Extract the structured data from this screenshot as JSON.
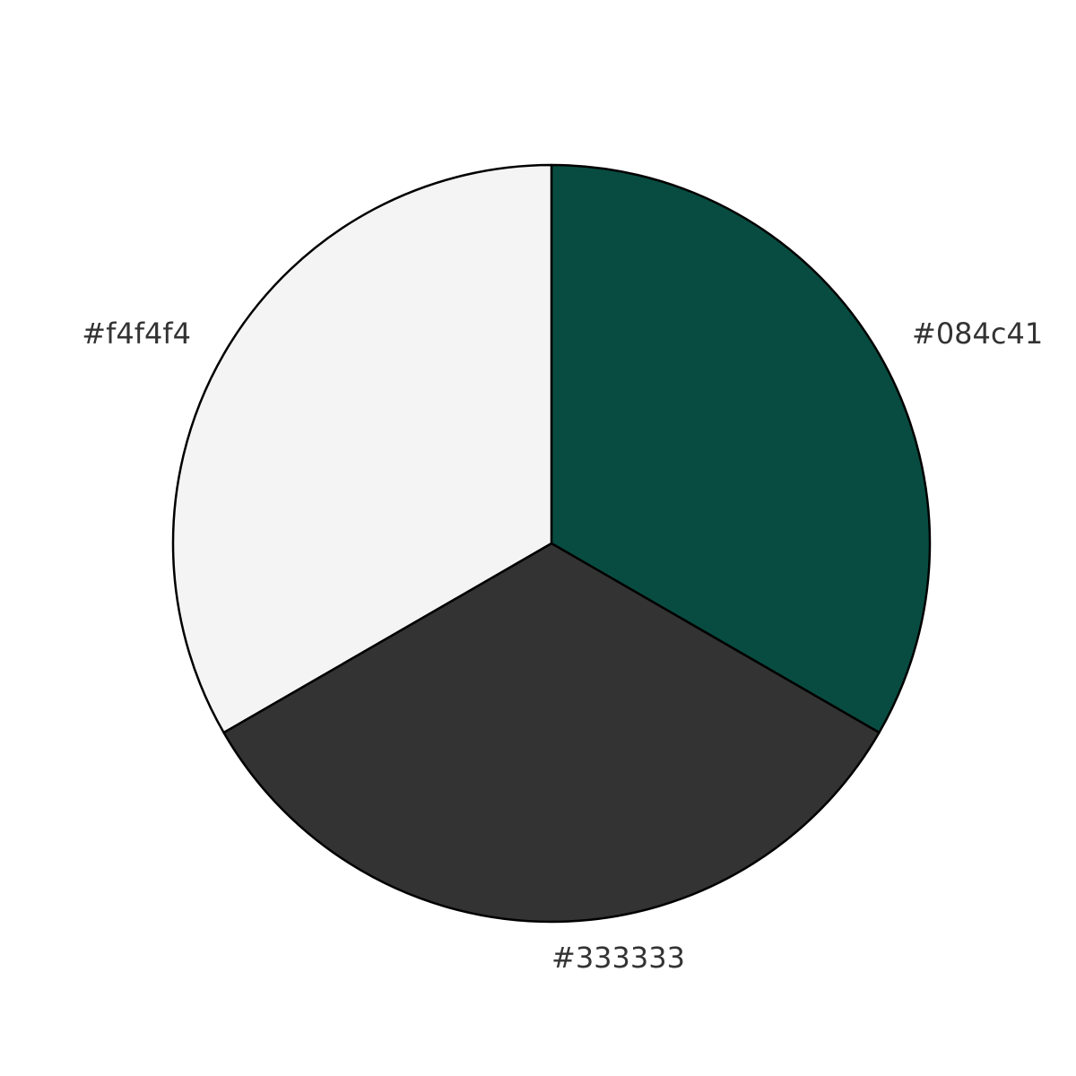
{
  "chart_data": {
    "type": "pie",
    "title": "",
    "slices": [
      {
        "label": "#084c41",
        "value": 1,
        "color": "#084c41"
      },
      {
        "label": "#333333",
        "value": 1,
        "color": "#333333"
      },
      {
        "label": "#f4f4f4",
        "value": 1,
        "color": "#f4f4f4"
      }
    ],
    "start_angle_deg": 90,
    "direction": "clockwise",
    "legend": "none",
    "label_color": "#333333",
    "edge_color": "#000000"
  }
}
